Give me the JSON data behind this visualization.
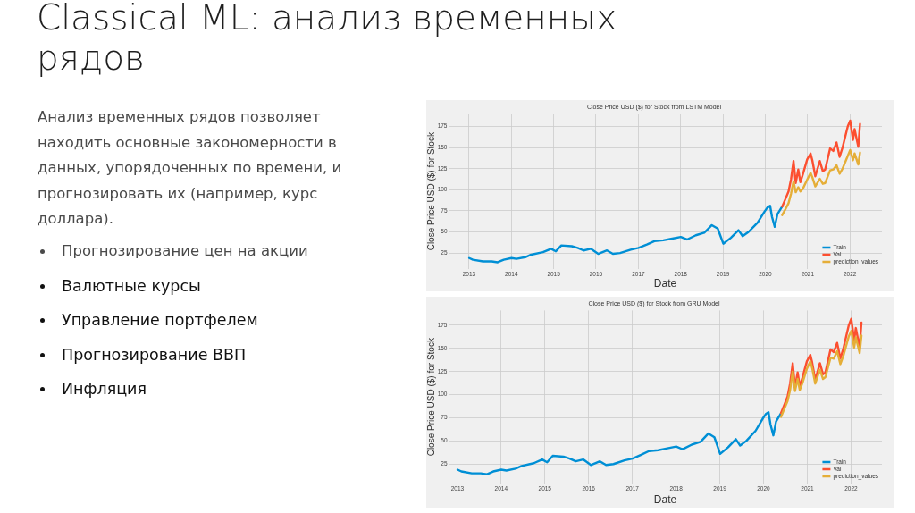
{
  "chart_data": [
    {
      "type": "other",
      "title": "Classical ML: анализ временных рядов",
      "annotations": [
        "Анализ временных рядов позволяет находить основные закономерности в данных, упорядоченных по времени, и прогнозировать их (например, курс доллара).",
        "Прогнозирование цен на акции",
        "Валютные курсы",
        "Управление портфелем",
        "Прогнозирование ВВП",
        "Инфляция"
      ]
    },
    {
      "type": "line",
      "title": "Close Price USD ($) for Stock from LSTM Model",
      "xlabel": "Date",
      "ylabel": "Close Price USD ($) for Stock",
      "xlim": [
        "2012-07-08",
        "2022-10-04"
      ],
      "xticks": [
        "2013",
        "2014",
        "2015",
        "2016",
        "2017",
        "2018",
        "2019",
        "2020",
        "2021",
        "2022"
      ],
      "ylim": [
        6,
        190
      ],
      "yticks": [
        25,
        50,
        75,
        100,
        125,
        150,
        175
      ],
      "grid": true,
      "legend": "bottom right",
      "series": [
        {
          "name": "Train",
          "color": "#008fd5",
          "x": [
            "2013-01-02",
            "2013-02-03",
            "2013-05-01",
            "2013-07-15",
            "2013-09-05",
            "2013-10-27",
            "2014-01-02",
            "2014-02-14",
            "2014-05-01",
            "2014-06-20",
            "2014-10-01",
            "2014-12-10",
            "2015-01-20",
            "2015-03-08",
            "2015-06-06",
            "2015-07-27",
            "2015-09-16",
            "2015-11-17",
            "2016-01-20",
            "2016-04-05",
            "2016-05-26",
            "2016-07-27",
            "2016-10-27",
            "2017-01-02",
            "2017-03-15",
            "2017-05-19",
            "2017-08-04",
            "2017-10-20",
            "2018-01-02",
            "2018-02-25",
            "2018-05-12",
            "2018-07-24",
            "2018-09-27",
            "2018-11-17",
            "2019-01-04",
            "2019-03-10",
            "2019-05-15",
            "2019-06-20",
            "2019-08-10",
            "2019-10-27",
            "2019-12-25",
            "2020-01-20",
            "2020-02-12",
            "2020-02-28",
            "2020-03-23",
            "2020-04-15",
            "2020-05-26"
          ],
          "values": [
            19,
            17,
            15,
            15,
            14,
            17,
            19,
            18,
            20,
            23,
            26,
            30,
            27,
            34,
            33,
            31,
            28,
            30,
            24,
            28,
            24,
            25,
            29,
            31,
            35,
            39,
            40,
            42,
            44,
            41,
            46,
            49,
            58,
            54,
            36,
            43,
            52,
            45,
            50,
            61,
            74,
            79,
            81,
            68,
            56,
            71,
            80
          ]
        },
        {
          "name": "Val",
          "color": "#fc4f30",
          "x": [
            "2020-05-26",
            "2020-06-20",
            "2020-07-20",
            "2020-08-10",
            "2020-09-01",
            "2020-09-20",
            "2020-10-12",
            "2020-10-30",
            "2020-11-20",
            "2020-12-28",
            "2021-01-26",
            "2021-02-10",
            "2021-03-08",
            "2021-04-16",
            "2021-05-12",
            "2021-06-01",
            "2021-07-14",
            "2021-08-10",
            "2021-09-07",
            "2021-10-04",
            "2021-10-29",
            "2021-12-13",
            "2022-01-03",
            "2022-01-27",
            "2022-02-10",
            "2022-03-14",
            "2022-03-29"
          ],
          "values": [
            80,
            88,
            98,
            112,
            134,
            108,
            124,
            109,
            118,
            136,
            143,
            135,
            116,
            134,
            122,
            124,
            149,
            146,
            156,
            139,
            150,
            175,
            182,
            159,
            172,
            151,
            178
          ]
        },
        {
          "name": "prediction_values",
          "color": "#e5ae38",
          "x": [
            "2020-05-26",
            "2020-06-20",
            "2020-07-20",
            "2020-08-10",
            "2020-09-01",
            "2020-09-20",
            "2020-10-12",
            "2020-10-30",
            "2020-11-20",
            "2020-12-28",
            "2021-01-26",
            "2021-02-10",
            "2021-03-08",
            "2021-04-16",
            "2021-05-12",
            "2021-06-01",
            "2021-07-14",
            "2021-08-10",
            "2021-09-07",
            "2021-10-04",
            "2021-10-29",
            "2021-12-13",
            "2022-01-03",
            "2022-01-27",
            "2022-02-10",
            "2022-03-14",
            "2022-03-29"
          ],
          "values": [
            70,
            76,
            84,
            95,
            110,
            97,
            103,
            98,
            101,
            112,
            120,
            115,
            104,
            113,
            107,
            108,
            123,
            124,
            129,
            119,
            125,
            140,
            147,
            135,
            143,
            130,
            144
          ]
        }
      ]
    },
    {
      "type": "line",
      "title": "Close Price USD ($) for Stock from GRU Model",
      "xlabel": "Date",
      "ylabel": "Close Price USD ($) for Stock",
      "xlim": [
        "2012-10-19",
        "2022-09-16"
      ],
      "xticks": [
        "2013",
        "2014",
        "2015",
        "2016",
        "2017",
        "2018",
        "2019",
        "2020",
        "2021",
        "2022"
      ],
      "ylim": [
        4,
        191
      ],
      "yticks": [
        25,
        50,
        75,
        100,
        125,
        150,
        175
      ],
      "grid": true,
      "legend": "bottom right",
      "series": [
        {
          "name": "Train",
          "color": "#008fd5",
          "x": [
            "2013-01-02",
            "2013-02-03",
            "2013-05-01",
            "2013-07-15",
            "2013-09-05",
            "2013-10-27",
            "2014-01-02",
            "2014-02-14",
            "2014-05-01",
            "2014-06-20",
            "2014-10-01",
            "2014-12-10",
            "2015-01-20",
            "2015-03-08",
            "2015-06-06",
            "2015-07-27",
            "2015-09-16",
            "2015-11-17",
            "2016-01-20",
            "2016-04-05",
            "2016-05-26",
            "2016-07-27",
            "2016-10-27",
            "2017-01-02",
            "2017-03-15",
            "2017-05-19",
            "2017-08-04",
            "2017-10-20",
            "2018-01-02",
            "2018-02-25",
            "2018-05-12",
            "2018-07-24",
            "2018-09-27",
            "2018-11-17",
            "2019-01-04",
            "2019-03-10",
            "2019-05-15",
            "2019-06-20",
            "2019-08-10",
            "2019-10-27",
            "2019-12-25",
            "2020-01-20",
            "2020-02-12",
            "2020-02-28",
            "2020-03-23",
            "2020-04-15",
            "2020-05-26"
          ],
          "values": [
            19,
            17,
            15,
            15,
            14,
            17,
            19,
            18,
            20,
            23,
            26,
            30,
            27,
            34,
            33,
            31,
            28,
            30,
            24,
            28,
            24,
            25,
            29,
            31,
            35,
            39,
            40,
            42,
            44,
            41,
            46,
            49,
            58,
            54,
            36,
            43,
            52,
            45,
            50,
            61,
            74,
            79,
            81,
            68,
            56,
            71,
            80
          ]
        },
        {
          "name": "Val",
          "color": "#fc4f30",
          "x": [
            "2020-05-26",
            "2020-06-20",
            "2020-07-20",
            "2020-08-10",
            "2020-09-01",
            "2020-09-20",
            "2020-10-12",
            "2020-10-30",
            "2020-11-20",
            "2020-12-28",
            "2021-01-26",
            "2021-02-10",
            "2021-03-08",
            "2021-04-16",
            "2021-05-12",
            "2021-06-01",
            "2021-07-14",
            "2021-08-10",
            "2021-09-07",
            "2021-10-04",
            "2021-10-29",
            "2021-12-13",
            "2022-01-03",
            "2022-01-27",
            "2022-02-10",
            "2022-03-14",
            "2022-03-29"
          ],
          "values": [
            80,
            88,
            98,
            112,
            134,
            108,
            124,
            109,
            118,
            136,
            143,
            135,
            116,
            134,
            122,
            124,
            149,
            146,
            156,
            139,
            150,
            175,
            182,
            159,
            172,
            151,
            178
          ]
        },
        {
          "name": "prediction_values",
          "color": "#e5ae38",
          "x": [
            "2020-05-26",
            "2020-06-20",
            "2020-07-20",
            "2020-08-10",
            "2020-09-01",
            "2020-09-20",
            "2020-10-12",
            "2020-10-30",
            "2020-11-20",
            "2020-12-28",
            "2021-01-26",
            "2021-02-10",
            "2021-03-08",
            "2021-04-16",
            "2021-05-12",
            "2021-06-01",
            "2021-07-14",
            "2021-08-10",
            "2021-09-07",
            "2021-10-04",
            "2021-10-29",
            "2021-12-13",
            "2022-01-03",
            "2022-01-27",
            "2022-02-10",
            "2022-03-14",
            "2022-03-29"
          ],
          "values": [
            76,
            84,
            93,
            105,
            125,
            104,
            117,
            105,
            112,
            128,
            136,
            129,
            112,
            127,
            117,
            119,
            140,
            139,
            147,
            133,
            142,
            163,
            169,
            151,
            162,
            145,
            164
          ]
        }
      ]
    }
  ]
}
